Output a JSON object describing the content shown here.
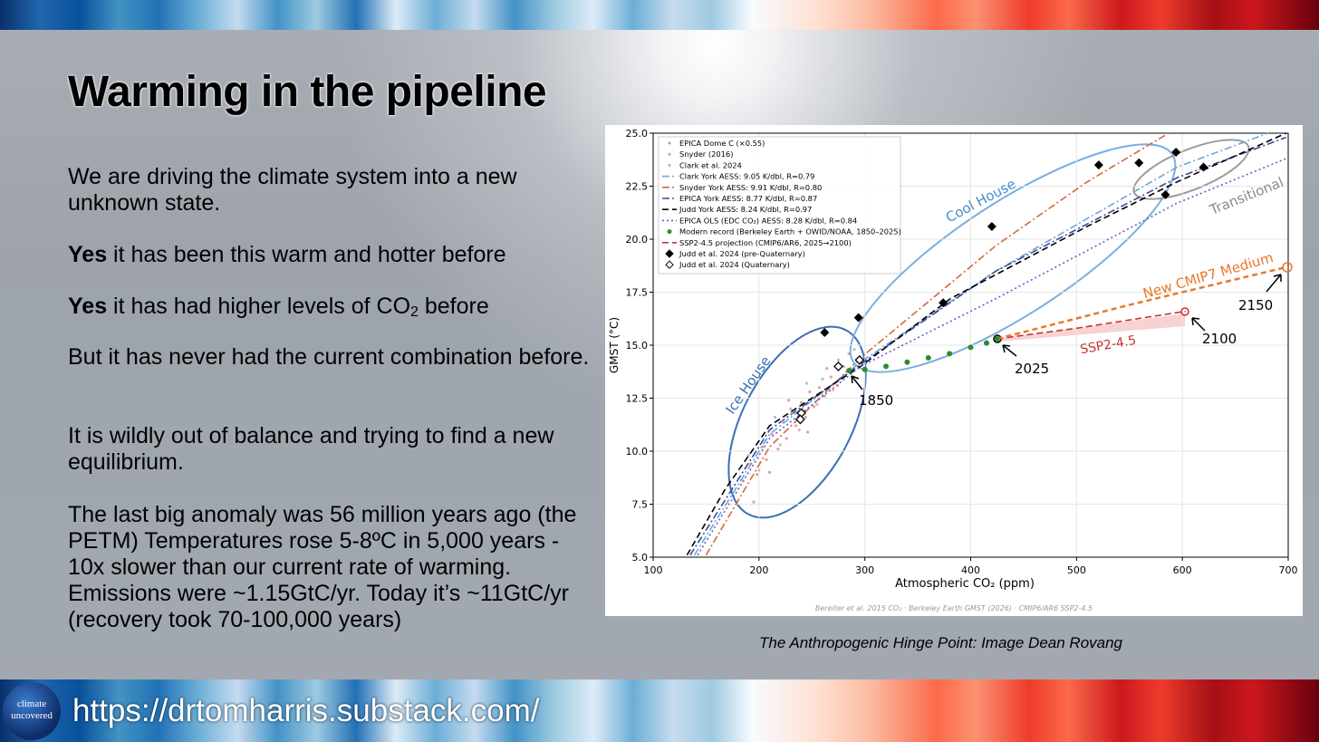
{
  "slide": {
    "title": "Warming in the pipeline",
    "paragraphs": [
      {
        "text": "We are driving the climate system into a new unknown state."
      },
      {
        "bold": "Yes",
        "text": " it has been this warm and hotter before"
      },
      {
        "bold": "Yes",
        "text": " it has had higher levels of CO",
        "sub": "2",
        "tail": " before"
      },
      {
        "text": "But it has never had the current combination before."
      },
      {
        "text": "It is wildly out of balance and trying to find a new equilibrium."
      },
      {
        "text": "The last big anomaly was 56 million years ago (the PETM) Temperatures rose 5-8ºC in 5,000 years - 10x slower than our current rate of warming. Emissions were ~1.15GtC/yr. Today it’s ~11GtC/yr (recovery took 70-100,000 years)"
      }
    ],
    "caption": "The Anthropogenic Hinge Point: Image Dean Rovang",
    "logo": [
      "climate",
      "uncovered"
    ],
    "url": "https://drtomharris.substack.com/"
  },
  "chart_data": {
    "type": "scatter",
    "x_label": "Atmospheric CO₂ (ppm)",
    "y_label": "GMST (°C)",
    "xlim": [
      100,
      700
    ],
    "xticks": [
      100,
      200,
      300,
      400,
      500,
      600,
      700
    ],
    "ylim": [
      5,
      25
    ],
    "yticks": [
      {
        "value": 5,
        "label": "5.0"
      },
      7.5,
      {
        "value": 10,
        "label": "10.0"
      },
      12.5,
      {
        "value": 15,
        "label": "15.0"
      },
      17.5,
      {
        "value": 20,
        "label": "20.0"
      },
      22.5,
      {
        "value": 25,
        "label": "25.0"
      }
    ],
    "grid": true,
    "series": [
      {
        "name": "EPICA Dome C (×0.55)",
        "color": "#d98a82",
        "kind": "dot",
        "x": [
          185,
          192,
          198,
          203,
          207,
          212,
          218,
          222,
          226,
          231,
          235,
          240,
          244,
          248,
          252,
          257,
          262,
          268,
          274,
          280,
          195,
          210,
          228,
          246,
          264,
          285
        ],
        "y": [
          8.6,
          9.4,
          8.9,
          10.2,
          9.6,
          10.8,
          10.1,
          11.4,
          10.6,
          11.8,
          11.2,
          12.3,
          11.6,
          12.8,
          12.1,
          13.0,
          12.6,
          13.5,
          13.1,
          14.0,
          7.6,
          9.0,
          12.4,
          10.9,
          13.9,
          14.6
        ]
      },
      {
        "name": "Snyder (2016)",
        "color": "#8fb0d8",
        "kind": "dot",
        "x": [
          190,
          205,
          215,
          230,
          245,
          260,
          275,
          290
        ],
        "y": [
          9.8,
          10.5,
          11.6,
          12.0,
          13.2,
          13.4,
          14.3,
          14.8
        ]
      },
      {
        "name": "Clark et al. 2024",
        "color": "#c8a0c8",
        "kind": "dot",
        "x": [
          200,
          220,
          238,
          255,
          270
        ],
        "y": [
          9.1,
          10.3,
          11.0,
          12.2,
          12.9
        ]
      },
      {
        "name": "Clark York AESS: 9.05 K/dbl, R=0.79",
        "color": "#6aa8d8",
        "kind": "line",
        "dash": "dashdot",
        "x": [
          139,
          210,
          296,
          424,
          595,
          681
        ],
        "y": [
          5.1,
          10.8,
          14.2,
          18.5,
          23.4,
          25
        ]
      },
      {
        "name": "Snyder York AESS: 9.91 K/dbl, R=0.80",
        "color": "#d2693a",
        "kind": "line",
        "dash": "dashdot",
        "x": [
          150,
          210,
          296,
          424,
          510,
          587
        ],
        "y": [
          5.1,
          10.2,
          14.4,
          19.7,
          22.7,
          25
        ]
      },
      {
        "name": "EPICA York AESS: 8.77 K/dbl, R=0.87",
        "color": "#3a4a9a",
        "kind": "line",
        "dash": "dashdot",
        "x": [
          135,
          210,
          296,
          424,
          595,
          698
        ],
        "y": [
          5.1,
          11.0,
          14.1,
          18.5,
          22.9,
          24.8
        ]
      },
      {
        "name": "Judd York AESS: 8.24 K/dbl, R=0.97",
        "color": "#000000",
        "kind": "line",
        "dash": "dash",
        "x": [
          132,
          168,
          210,
          296,
          381,
          510,
          595,
          698
        ],
        "y": [
          5.1,
          8.2,
          11.2,
          14.0,
          17.2,
          20.6,
          22.7,
          25
        ]
      },
      {
        "name": "EPICA OLS (EDC CO₂) AESS: 8.28 K/dbl, R=0.84",
        "color": "#6a5acd",
        "kind": "line",
        "dash": "dot",
        "x": [
          142,
          210,
          296,
          424,
          595,
          698
        ],
        "y": [
          5.1,
          10.6,
          14.0,
          17.2,
          21.7,
          23.8
        ]
      },
      {
        "name": "Modern record (Berkeley Earth + OWID/NOAA, 1850–2025)",
        "color": "#2e8b2e",
        "kind": "green",
        "x": [
          285,
          300,
          320,
          340,
          360,
          380,
          400,
          415,
          425
        ],
        "y": [
          13.8,
          13.85,
          14.0,
          14.2,
          14.4,
          14.6,
          14.9,
          15.1,
          15.3
        ]
      },
      {
        "name": "SSP2-4.5 projection (CMIP6/AR6, 2025→2100)",
        "color": "#c83232",
        "kind": "line",
        "dash": "dash",
        "x": [
          425,
          500,
          603
        ],
        "y": [
          15.3,
          15.8,
          16.6
        ]
      },
      {
        "name": "Judd et al. 2024 (pre-Quaternary)",
        "color": "#000000",
        "kind": "diamond",
        "x": [
          262,
          294,
          374,
          420,
          521,
          559,
          584,
          594,
          620
        ],
        "y": [
          15.6,
          16.3,
          17.0,
          20.6,
          23.5,
          23.6,
          22.1,
          24.1,
          23.4
        ]
      },
      {
        "name": "Judd et al. 2024 (Quaternary)",
        "color": "#000000",
        "kind": "open-diamond",
        "x": [
          275,
          295,
          240,
          239
        ],
        "y": [
          14.0,
          14.3,
          11.8,
          11.5
        ]
      }
    ],
    "cmip7": {
      "color": "#e8782a",
      "x": [
        425,
        550,
        700
      ],
      "y": [
        15.3,
        16.9,
        18.7
      ]
    },
    "annotations": [
      "Cool House",
      "Ice House",
      "Transitional",
      "New CMIP7 Medium",
      "SSP2-4.5",
      "1850",
      "2025",
      "2100",
      "2150"
    ],
    "source": "Bereiter et al. 2015 CO₂  ·  Berkeley Earth GMST (2026)  ·  CMIP6/AR6 SSP2-4.5"
  }
}
